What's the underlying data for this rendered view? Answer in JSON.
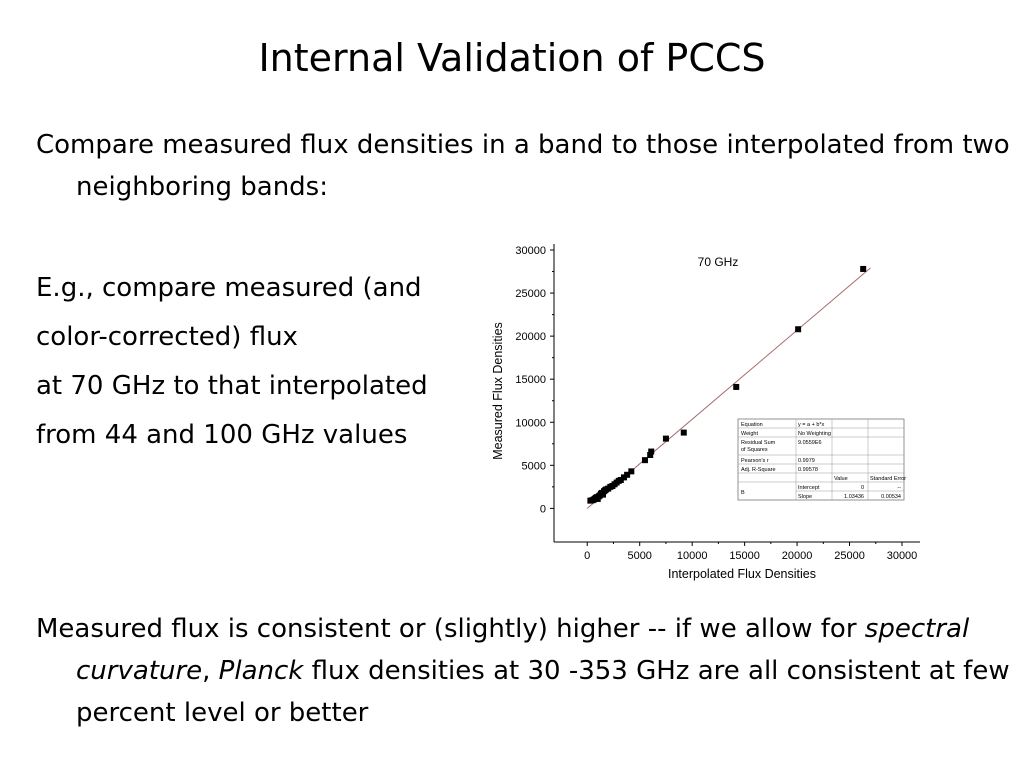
{
  "slide": {
    "title": "Internal  Validation of PCCS",
    "para1": "Compare measured flux densities in a band to those interpolated from two neighboring bands:",
    "para2_lines": [
      "E.g., compare measured (and",
      "color-corrected) flux",
      "at 70 GHz to that interpolated",
      "from 44 and 100 GHz values"
    ],
    "para3": {
      "part1": "Measured flux is consistent or (slightly) higher -- if we allow for ",
      "italic1": "spectral curvature",
      "part2": ", ",
      "italic2": "Planck",
      "part3": " flux densities at 30 -353 GHz are all consistent at few percent level or better"
    }
  },
  "chart_data": {
    "type": "scatter",
    "title": "70 GHz",
    "xlabel": "Interpolated Flux Densities",
    "ylabel": "Measured Flux Densities",
    "xlim": [
      -500,
      30000
    ],
    "ylim": [
      -1000,
      30000
    ],
    "x_ticks": [
      0,
      5000,
      10000,
      15000,
      20000,
      25000,
      30000
    ],
    "y_ticks": [
      0,
      5000,
      10000,
      15000,
      20000,
      25000,
      30000
    ],
    "fit_line": {
      "intercept": 0,
      "slope": 1.03436
    },
    "points": [
      [
        300,
        900
      ],
      [
        500,
        950
      ],
      [
        600,
        1000
      ],
      [
        700,
        1100
      ],
      [
        800,
        1200
      ],
      [
        900,
        1300
      ],
      [
        1000,
        1100
      ],
      [
        1100,
        1400
      ],
      [
        1200,
        1500
      ],
      [
        1300,
        1700
      ],
      [
        1400,
        1800
      ],
      [
        1500,
        1600
      ],
      [
        1600,
        2000
      ],
      [
        1700,
        2100
      ],
      [
        1800,
        2200
      ],
      [
        2000,
        2300
      ],
      [
        2200,
        2500
      ],
      [
        2400,
        2600
      ],
      [
        2600,
        2800
      ],
      [
        2800,
        3000
      ],
      [
        3000,
        3200
      ],
      [
        3200,
        3300
      ],
      [
        3500,
        3600
      ],
      [
        3800,
        3900
      ],
      [
        4200,
        4300
      ],
      [
        5500,
        5600
      ],
      [
        6000,
        6200
      ],
      [
        6100,
        6600
      ],
      [
        7500,
        8100
      ],
      [
        9200,
        8800
      ],
      [
        14200,
        14100
      ],
      [
        20100,
        20800
      ],
      [
        26300,
        27800
      ]
    ],
    "results_table": {
      "rows": [
        {
          "label": "Equation",
          "value": "y = a + b*x"
        },
        {
          "label": "Weight",
          "value": "No Weighting"
        },
        {
          "label": "Residual Sum of Squares",
          "value": "9.0559E6"
        },
        {
          "label": "Pearson's r",
          "value": "0.9979"
        },
        {
          "label": "Adj. R-Square",
          "value": "0.99578"
        }
      ],
      "param_headers": [
        "Value",
        "Standard Error"
      ],
      "param_group": "B",
      "params": [
        {
          "name": "Intercept",
          "value": "0",
          "error": "--"
        },
        {
          "name": "Slope",
          "value": "1.03436",
          "error": "0.00534"
        }
      ]
    }
  }
}
